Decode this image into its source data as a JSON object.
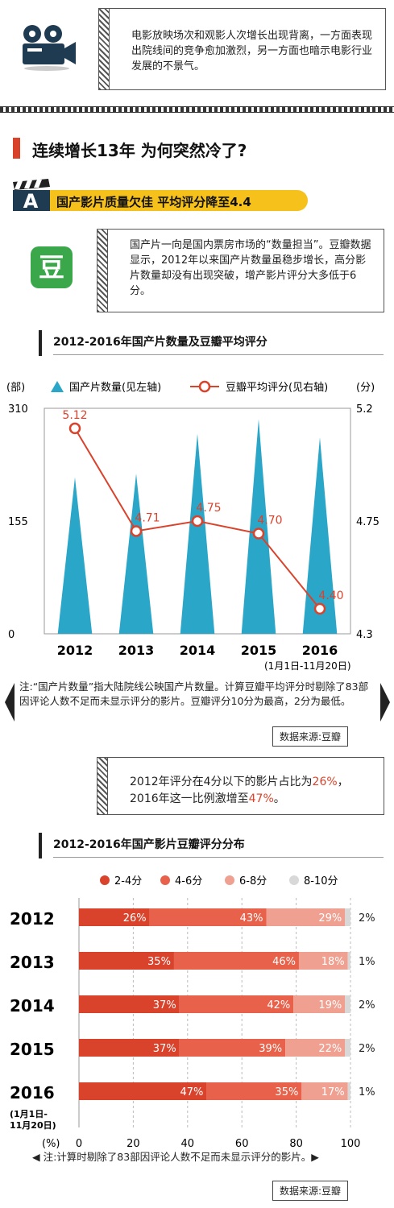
{
  "intro": {
    "text": "电影放映场次和观影人次增长出现背离，一方面表现出院线间的竞争愈加激烈，另一方面也暗示电影行业发展的不景气。"
  },
  "headline": "连续增长13年 为何突然冷了?",
  "section_a": {
    "letter": "A",
    "title": "国产影片质量欠佳 平均评分降至4.4",
    "icon_char": "豆",
    "text": "国产片一向是国内票房市场的“数量担当”。豆瓣数据显示，2012年以来国产片数量虽稳步增长，高分影片数量却没有出现突破，增产影片评分大多低于6分。"
  },
  "chart1": {
    "title": "2012-2016年国产片数量及豆瓣平均评分",
    "left_unit": "(部)",
    "right_unit": "(分)",
    "legend_count": "国产片数量(见左轴)",
    "legend_score": "豆瓣平均评分(见右轴)",
    "left_ticks": [
      "310",
      "155",
      "0"
    ],
    "right_ticks": [
      "5.2",
      "4.75",
      "4.3"
    ],
    "period_note": "(1月1日-11月20日)",
    "footnote": "注:“国产片数量”指大陆院线公映国产片数量。计算豆瓣平均评分时剔除了83部因评论人数不足而未显示评分的影片。豆瓣评分10分为最高，2分为最低。",
    "source": "数据来源:豆瓣"
  },
  "chart_data": [
    {
      "type": "bar",
      "categories": [
        "2012",
        "2013",
        "2014",
        "2015",
        "2016"
      ],
      "series": [
        {
          "name": "国产片数量(见左轴)",
          "values": [
            215,
            220,
            275,
            295,
            270
          ]
        },
        {
          "name": "豆瓣平均评分(见右轴)",
          "values": [
            5.12,
            4.71,
            4.75,
            4.7,
            4.4
          ]
        }
      ],
      "title": "2012-2016年国产片数量及豆瓣平均评分",
      "ylim_left": [
        0,
        310
      ],
      "ylim_right": [
        4.3,
        5.2
      ],
      "score_labels": [
        "5.12",
        "4.71",
        "4.75",
        "4.70",
        "4.40"
      ]
    },
    {
      "type": "bar",
      "categories": [
        "2012",
        "2013",
        "2014",
        "2015",
        "2016"
      ],
      "series": [
        {
          "name": "2-4分",
          "values": [
            26,
            35,
            37,
            37,
            47
          ]
        },
        {
          "name": "4-6分",
          "values": [
            43,
            46,
            42,
            39,
            35
          ]
        },
        {
          "name": "6-8分",
          "values": [
            29,
            18,
            19,
            22,
            17
          ]
        },
        {
          "name": "8-10分",
          "values": [
            2,
            1,
            2,
            2,
            1
          ]
        }
      ],
      "title": "2012-2016年国产影片豆瓣评分分布",
      "xlim": [
        0,
        100
      ],
      "x_ticks": [
        "0",
        "20",
        "40",
        "60",
        "80",
        "100"
      ],
      "unit": "(%)",
      "stacked": true,
      "orientation": "horizontal"
    }
  ],
  "highlight": {
    "line1": "2012年评分在4分以下的影片占比为",
    "pct1": "26%",
    "mid": "，2016年这一比例激增至",
    "pct2": "47%",
    "end": "。"
  },
  "chart2": {
    "title": "2012-2016年国产影片豆瓣评分分布",
    "legend": [
      "2-4分",
      "4-6分",
      "6-8分",
      "8-10分"
    ],
    "colors": [
      "#d9432c",
      "#e8614a",
      "#f0a090",
      "#d8d8d8"
    ],
    "period_note_1": "(1月1日-",
    "period_note_2": "11月20日)",
    "unit": "(%)",
    "footnote": "◀ 注:计算时剔除了83部因评论人数不足而未显示评分的影片。▶",
    "source": "数据来源:豆瓣"
  },
  "colors": {
    "teal": "#2aa6c9",
    "red": "#d9432c",
    "yellow": "#f5c11a",
    "green": "#3aa84a"
  }
}
